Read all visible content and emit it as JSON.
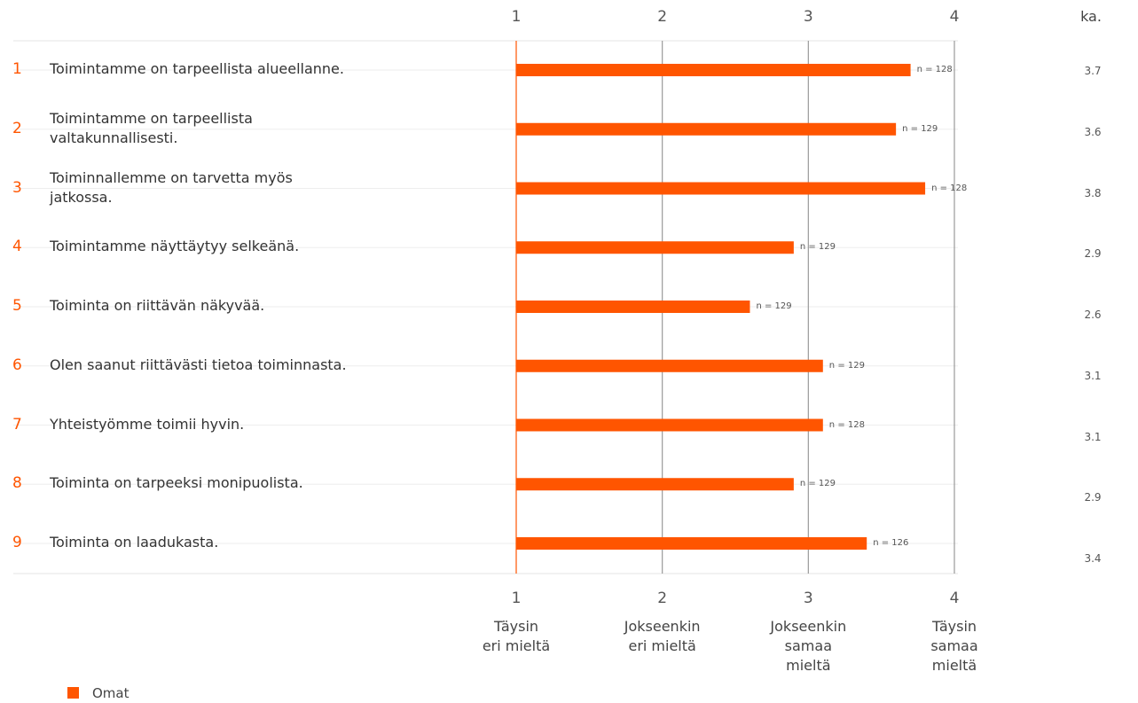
{
  "chart_data": {
    "type": "bar",
    "orientation": "horizontal",
    "numbers": [
      1,
      2,
      3,
      4,
      5,
      6,
      7,
      8,
      9
    ],
    "categories": [
      "Toimintamme on tarpeellista alueellanne.",
      "Toimintamme on tarpeellista\nvaltakunnallisesti.",
      "Toiminnallemme on tarvetta myös\njatkossa.",
      "Toimintamme näyttäytyy selkeänä.",
      "Toiminta on riittävän näkyvää.",
      "Olen saanut riittävästi tietoa toiminnasta.",
      "Yhteistyömme toimii hyvin.",
      "Toiminta on tarpeeksi monipuolista.",
      "Toiminta on laadukasta."
    ],
    "series": [
      {
        "name": "Omat",
        "color": "#ff5500",
        "values": [
          3.7,
          3.6,
          3.8,
          2.9,
          2.6,
          3.1,
          3.1,
          2.9,
          3.4
        ]
      }
    ],
    "n_labels": [
      "n = 128",
      "n = 129",
      "n = 128",
      "n = 129",
      "n = 129",
      "n = 129",
      "n = 128",
      "n = 129",
      "n = 126"
    ],
    "mean_header": "ka.",
    "xlim": [
      1,
      4
    ],
    "xticks": [
      1,
      2,
      3,
      4
    ],
    "scale_labels": [
      "Täysin\neri mieltä",
      "Jokseenkin\neri mieltä",
      "Jokseenkin\nsamaa\nmieltä",
      "Täysin\nsamaa\nmieltä"
    ],
    "grid": true,
    "legend": "bottom-left"
  }
}
